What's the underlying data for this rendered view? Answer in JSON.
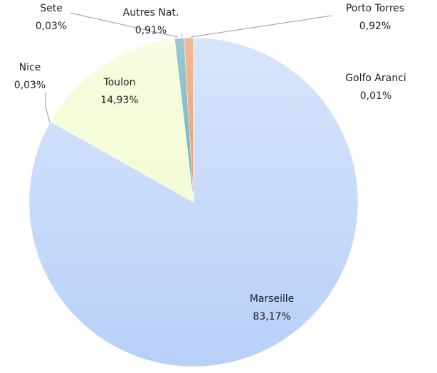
{
  "chart_data": {
    "type": "pie",
    "categories": [
      "Marseille",
      "Nice",
      "Toulon",
      "Sete",
      "Autres Nat.",
      "Porto Torres",
      "Golfo Aranci"
    ],
    "values": [
      83.17,
      0.03,
      14.93,
      0.03,
      0.91,
      0.92,
      0.01
    ],
    "value_labels": [
      "83,17%",
      "0,03%",
      "14,93%",
      "0,03%",
      "0,91%",
      "0,92%",
      "0,01%"
    ],
    "colors": [
      "#b8d0f8",
      "#c9d9a0",
      "#f0fbc8",
      "#7aa6c8",
      "#4a9bb0",
      "#e8823a",
      "#8fb8e0"
    ]
  }
}
